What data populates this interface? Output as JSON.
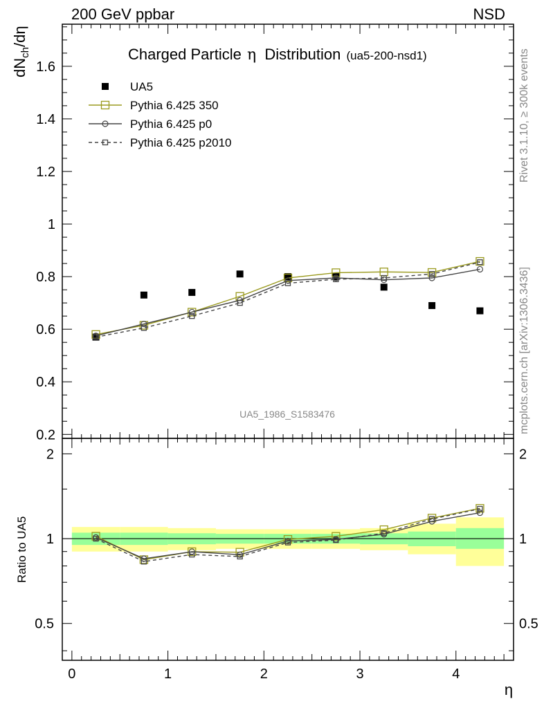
{
  "header": {
    "left": "200 GeV ppbar",
    "right": "NSD"
  },
  "side_labels": {
    "rivet": "Rivet 3.1.10, ≥ 300k events",
    "mcplots": "mcplots.cern.ch [arXiv:1306.3436]"
  },
  "watermark": "UA5_1986_S1583476",
  "colors": {
    "pythia350": "#9a9a1e",
    "pythia_p0": "#444444",
    "pythia_p2010": "#444444",
    "band_inner": "#99ff99",
    "band_outer": "#ffff99"
  },
  "chart_data": [
    {
      "type": "scatter",
      "title_main": "Charged Particle",
      "title_symbol": "η",
      "title_word": "Distribution",
      "title_tag": "(ua5-200-nsd1)",
      "xlabel": "η",
      "ylabel_main": "dN",
      "ylabel_sub": "ch",
      "ylabel_tail": "/dη",
      "xlim": [
        -0.1,
        4.6
      ],
      "ylim": [
        0.185,
        1.76
      ],
      "x_ticks": [
        0,
        1,
        2,
        3,
        4
      ],
      "y_ticks": [
        0.2,
        0.4,
        0.6,
        0.8,
        1.0,
        1.2,
        1.4,
        1.6
      ],
      "y_tick_labels": [
        "0.2",
        "0.4",
        "0.6",
        "0.8",
        "1",
        "1.2",
        "1.4",
        "1.6"
      ],
      "legend_position": "top-left",
      "bins": [
        [
          0,
          0.5
        ],
        [
          0.5,
          1
        ],
        [
          1,
          1.5
        ],
        [
          1.5,
          2
        ],
        [
          2,
          2.5
        ],
        [
          2.5,
          3
        ],
        [
          3,
          3.5
        ],
        [
          3.5,
          4
        ],
        [
          4,
          4.5
        ]
      ],
      "x": [
        0.25,
        0.75,
        1.25,
        1.75,
        2.25,
        2.75,
        3.25,
        3.75,
        4.25
      ],
      "series": [
        {
          "name": "UA5",
          "values": [
            0.57,
            0.73,
            0.74,
            0.81,
            0.8,
            0.8,
            0.76,
            0.69,
            0.67
          ]
        },
        {
          "name": "Pythia 6.425 350",
          "values": [
            0.58,
            0.615,
            0.665,
            0.725,
            0.795,
            0.815,
            0.818,
            0.816,
            0.858
          ]
        },
        {
          "name": "Pythia 6.425 p0",
          "values": [
            0.575,
            0.62,
            0.665,
            0.71,
            0.785,
            0.795,
            0.788,
            0.795,
            0.828
          ]
        },
        {
          "name": "Pythia 6.425 p2010",
          "values": [
            0.57,
            0.605,
            0.65,
            0.7,
            0.775,
            0.79,
            0.795,
            0.81,
            0.855
          ]
        }
      ]
    },
    {
      "type": "line",
      "ylabel": "Ratio to UA5",
      "xlim": [
        -0.1,
        4.6
      ],
      "ylim": [
        0.37,
        2.27
      ],
      "x_ticks": [
        0,
        1,
        2,
        3,
        4
      ],
      "x_tick_labels": [
        "0",
        "1",
        "2",
        "3",
        "4"
      ],
      "y_ticks": [
        0.5,
        1,
        2
      ],
      "y_tick_labels": [
        "0.5",
        "1",
        "2"
      ],
      "reference_line": 1,
      "bands": [
        {
          "inner": [
            0.95,
            1.05
          ],
          "outer": [
            0.9,
            1.1
          ]
        },
        {
          "inner": [
            0.95,
            1.05
          ],
          "outer": [
            0.9,
            1.1
          ]
        },
        {
          "inner": [
            0.955,
            1.045
          ],
          "outer": [
            0.91,
            1.09
          ]
        },
        {
          "inner": [
            0.96,
            1.04
          ],
          "outer": [
            0.92,
            1.08
          ]
        },
        {
          "inner": [
            0.96,
            1.04
          ],
          "outer": [
            0.92,
            1.08
          ]
        },
        {
          "inner": [
            0.96,
            1.04
          ],
          "outer": [
            0.92,
            1.08
          ]
        },
        {
          "inner": [
            0.955,
            1.045
          ],
          "outer": [
            0.91,
            1.09
          ]
        },
        {
          "inner": [
            0.94,
            1.06
          ],
          "outer": [
            0.88,
            1.13
          ]
        },
        {
          "inner": [
            0.92,
            1.09
          ],
          "outer": [
            0.8,
            1.19
          ]
        }
      ],
      "x": [
        0.25,
        0.75,
        1.25,
        1.75,
        2.25,
        2.75,
        3.25,
        3.75,
        4.25
      ],
      "series": [
        {
          "name": "Pythia 6.425 350",
          "values": [
            1.02,
            0.842,
            0.899,
            0.895,
            0.994,
            1.019,
            1.076,
            1.183,
            1.281
          ]
        },
        {
          "name": "Pythia 6.425 p0",
          "values": [
            1.01,
            0.849,
            0.899,
            0.877,
            0.981,
            0.994,
            1.037,
            1.152,
            1.236
          ]
        },
        {
          "name": "Pythia 6.425 p2010",
          "values": [
            1.0,
            0.829,
            0.878,
            0.864,
            0.969,
            0.988,
            1.046,
            1.174,
            1.276
          ]
        }
      ]
    }
  ]
}
